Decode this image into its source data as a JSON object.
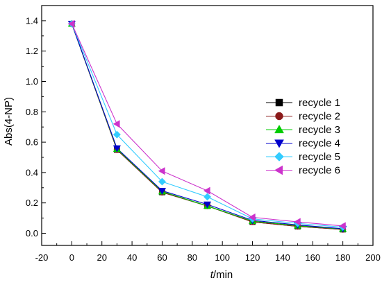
{
  "chart_data": {
    "type": "line",
    "title": "",
    "xlabel_italic": "t",
    "xlabel_rest": "/min",
    "ylabel": "Abs(4-NP)",
    "xlim": [
      -20,
      200
    ],
    "ylim": [
      -0.08,
      1.5
    ],
    "xticks": [
      -20,
      0,
      20,
      40,
      60,
      80,
      100,
      120,
      140,
      160,
      180,
      200
    ],
    "xtick_labels": [
      "-20",
      "0",
      "20",
      "40",
      "60",
      "80",
      "100",
      "120",
      "140",
      "160",
      "180",
      "200"
    ],
    "yticks": [
      0.0,
      0.2,
      0.4,
      0.6,
      0.8,
      1.0,
      1.2,
      1.4
    ],
    "ytick_labels": [
      "0.0",
      "0.2",
      "0.4",
      "0.6",
      "0.8",
      "1.0",
      "1.2",
      "1.4"
    ],
    "legend_position": "right",
    "x": [
      0,
      30,
      60,
      90,
      120,
      150,
      180
    ],
    "series": [
      {
        "name": "recycle 1",
        "color": "#000000",
        "marker": "square",
        "values": [
          1.38,
          0.55,
          0.27,
          0.18,
          0.075,
          0.045,
          0.025
        ]
      },
      {
        "name": "recycle 2",
        "color": "#8B1A1A",
        "marker": "circle",
        "values": [
          1.38,
          0.55,
          0.27,
          0.18,
          0.075,
          0.045,
          0.025
        ]
      },
      {
        "name": "recycle 3",
        "color": "#00CC00",
        "marker": "triangle-up",
        "values": [
          1.38,
          0.555,
          0.275,
          0.18,
          0.08,
          0.05,
          0.028
        ]
      },
      {
        "name": "recycle 4",
        "color": "#0000CC",
        "marker": "triangle-down",
        "values": [
          1.38,
          0.56,
          0.28,
          0.19,
          0.085,
          0.055,
          0.03
        ]
      },
      {
        "name": "recycle 5",
        "color": "#33CCFF",
        "marker": "diamond",
        "values": [
          1.38,
          0.65,
          0.34,
          0.24,
          0.095,
          0.065,
          0.04
        ]
      },
      {
        "name": "recycle 6",
        "color": "#CC33CC",
        "marker": "triangle-left",
        "values": [
          1.38,
          0.72,
          0.41,
          0.28,
          0.105,
          0.075,
          0.048
        ]
      }
    ]
  }
}
